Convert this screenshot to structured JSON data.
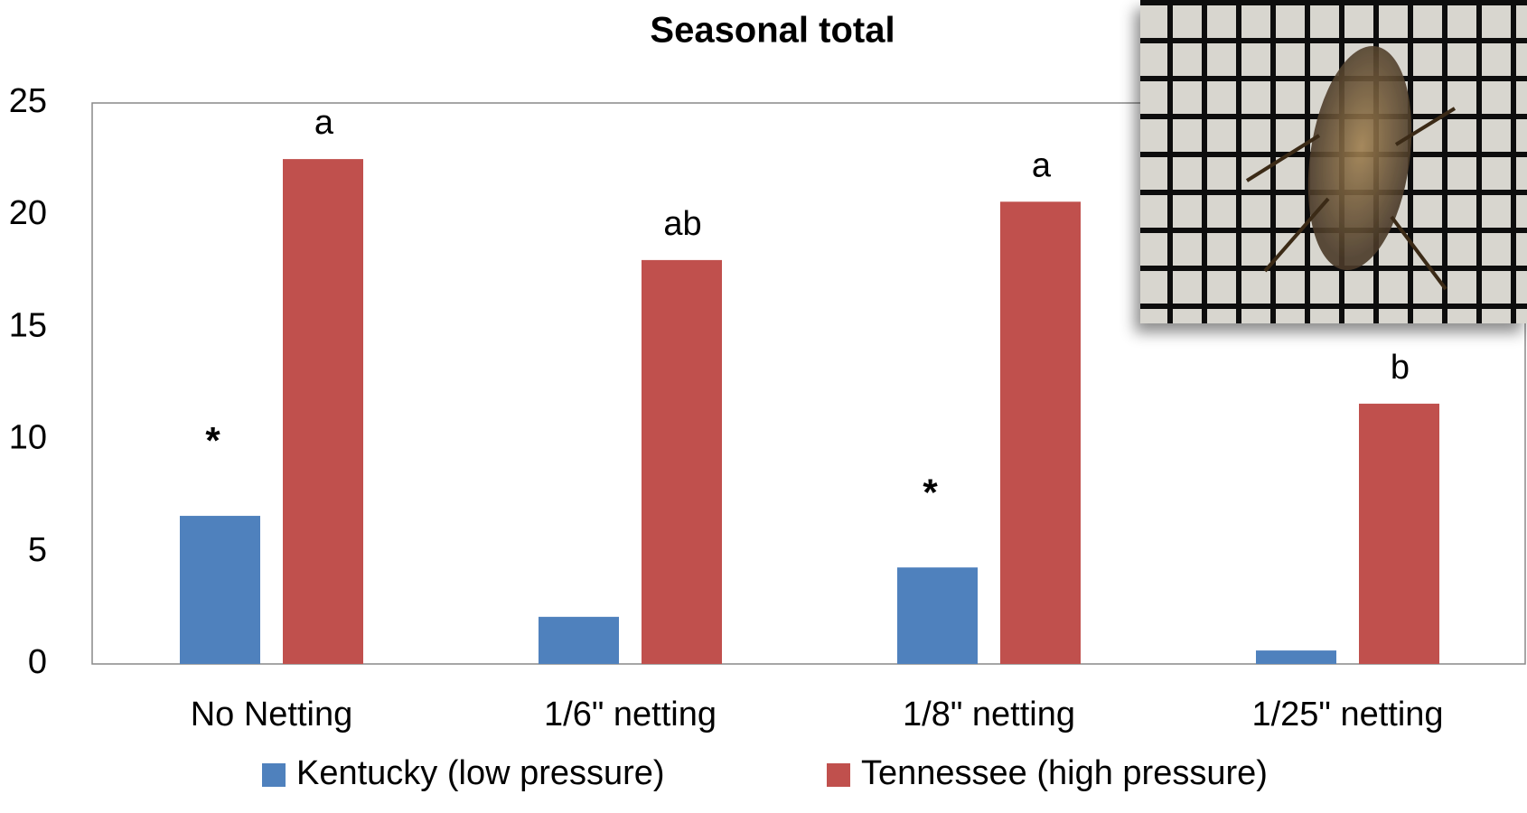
{
  "chart_data": {
    "type": "bar",
    "title": "Seasonal total",
    "categories": [
      "No Netting",
      "1/6\" netting",
      "1/8\" netting",
      "1/25\" netting"
    ],
    "series": [
      {
        "name": "Kentucky (low pressure)",
        "color": "#4f81bd",
        "values": [
          6.6,
          2.1,
          4.3,
          0.6
        ],
        "annotations": [
          "*",
          null,
          "*",
          null
        ]
      },
      {
        "name": "Tennessee (high pressure)",
        "color": "#c0504d",
        "values": [
          22.5,
          18.0,
          20.6,
          11.6
        ],
        "annotations": [
          "a",
          "ab",
          "a",
          "b"
        ]
      }
    ],
    "ylim": [
      0,
      25
    ],
    "yticks": [
      0,
      5,
      10,
      15,
      20,
      25
    ],
    "grid": false,
    "legend": "bottom"
  }
}
